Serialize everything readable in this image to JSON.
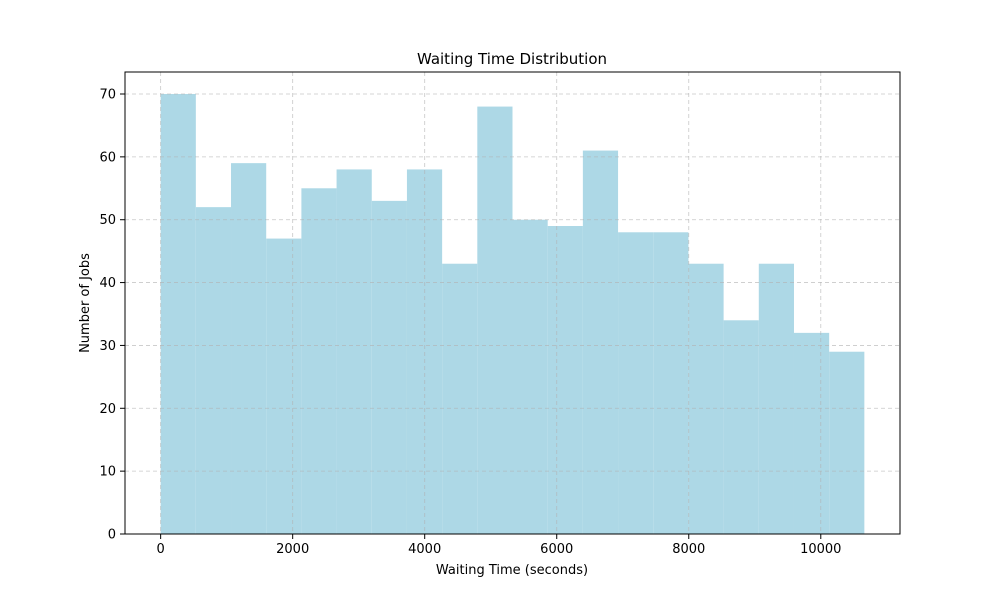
{
  "chart_data": {
    "type": "bar",
    "title": "Waiting Time Distribution",
    "xlabel": "Waiting Time (seconds)",
    "ylabel": "Number of Jobs",
    "bin_edges": [
      0,
      533,
      1066,
      1599,
      2132,
      2665,
      3198,
      3731,
      4264,
      4797,
      5330,
      5863,
      6396,
      6929,
      7462,
      7995,
      8528,
      9061,
      9594,
      10127,
      10660
    ],
    "values": [
      70,
      52,
      59,
      47,
      55,
      58,
      53,
      58,
      43,
      68,
      50,
      49,
      61,
      48,
      48,
      43,
      34,
      43,
      32,
      29
    ],
    "xlim": [
      -540,
      11200
    ],
    "ylim": [
      0,
      73.5
    ],
    "xticks": [
      0,
      2000,
      4000,
      6000,
      8000,
      10000
    ],
    "yticks": [
      0,
      10,
      20,
      30,
      40,
      50,
      60,
      70
    ],
    "grid": true,
    "bar_color": "#add8e6",
    "grid_color": "#b0b0b0"
  }
}
